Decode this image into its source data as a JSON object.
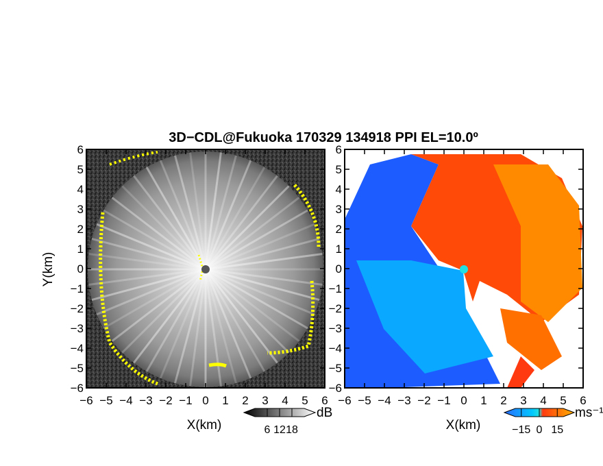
{
  "title": "3D−CDL@Fukuoka 170329 134918 PPI EL=10.0º",
  "chart_data": [
    {
      "type": "heatmap",
      "panel": "reflectivity",
      "xlabel": "X(km)",
      "ylabel": "Y(km)",
      "xlim": [
        -6,
        6
      ],
      "ylim": [
        -6,
        6
      ],
      "xticks": [
        "−6",
        "−5",
        "−4",
        "−3",
        "−2",
        "−1",
        "0",
        "1",
        "2",
        "3",
        "4",
        "5",
        "6"
      ],
      "yticks": [
        "6",
        "5",
        "4",
        "3",
        "2",
        "1",
        "0",
        "−1",
        "−2",
        "−3",
        "−4",
        "−5",
        "−6"
      ],
      "scan_radius_km": 5.9,
      "colormap": "grayscale",
      "highlight_color": "#ffff00",
      "colorbar": {
        "unit": "dB",
        "ticks": [
          "6",
          "12",
          "18"
        ],
        "range": [
          0,
          24
        ]
      }
    },
    {
      "type": "heatmap",
      "panel": "doppler_velocity",
      "xlabel": "X(km)",
      "xlim": [
        -6,
        6
      ],
      "ylim": [
        -6,
        6
      ],
      "xticks": [
        "−6",
        "−5",
        "−4",
        "−3",
        "−2",
        "−1",
        "0",
        "1",
        "2",
        "3",
        "4",
        "5",
        "6"
      ],
      "yticks": [
        "6",
        "5",
        "4",
        "3",
        "2",
        "1",
        "0",
        "−1",
        "−2",
        "−3",
        "−4",
        "−5",
        "−6"
      ],
      "colormap": "blue-cyan-red-orange",
      "negative_color": "#0050ff",
      "positive_color": "#ff5000",
      "center_marker_color": "#22e0e0",
      "colorbar": {
        "unit": "ms⁻¹",
        "ticks": [
          "−15",
          "0",
          "15"
        ],
        "range": [
          -20,
          20
        ]
      }
    }
  ]
}
